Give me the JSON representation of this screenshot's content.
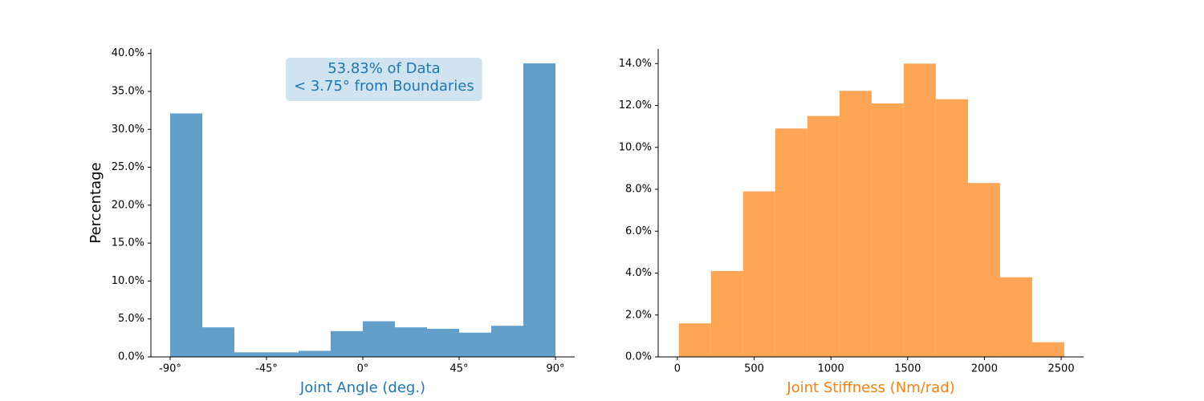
{
  "chart_data": [
    {
      "type": "histogram",
      "xlabel": "Joint Angle (deg.)",
      "xlabel_color": "#1f77b4",
      "ylabel": "Percentage",
      "bins": [
        -90,
        -75,
        -60,
        -45,
        -30,
        -15,
        0,
        15,
        30,
        45,
        60,
        75,
        90
      ],
      "values": [
        32.1,
        3.9,
        0.6,
        0.6,
        0.8,
        3.4,
        4.7,
        3.9,
        3.7,
        3.2,
        4.1,
        38.7
      ],
      "color": "#62a0cb",
      "xlim": [
        -99,
        99
      ],
      "ylim": [
        0,
        40.6
      ],
      "xticks": [
        {
          "value": -90,
          "label": "-90°"
        },
        {
          "value": -45,
          "label": "-45°"
        },
        {
          "value": 0,
          "label": "0°"
        },
        {
          "value": 45,
          "label": "45°"
        },
        {
          "value": 90,
          "label": "90°"
        }
      ],
      "yticks": [
        {
          "value": 0,
          "label": "0.0%"
        },
        {
          "value": 5,
          "label": "5.0%"
        },
        {
          "value": 10,
          "label": "10.0%"
        },
        {
          "value": 15,
          "label": "15.0%"
        },
        {
          "value": 20,
          "label": "20.0%"
        },
        {
          "value": 25,
          "label": "25.0%"
        },
        {
          "value": 30,
          "label": "30.0%"
        },
        {
          "value": 35,
          "label": "35.0%"
        },
        {
          "value": 40,
          "label": "40.0%"
        }
      ],
      "annotation": [
        "53.83% of Data",
        "< 3.75° from Boundaries"
      ],
      "annotation_color": "#1f77b4",
      "annotation_background": "#d0e3f0"
    },
    {
      "type": "histogram",
      "xlabel": "Joint Stiffness (Nm/rad)",
      "xlabel_color": "#ff7f0e",
      "bins": [
        10,
        219,
        428,
        637,
        847,
        1056,
        1265,
        1474,
        1683,
        1893,
        2102,
        2311,
        2520
      ],
      "values": [
        1.6,
        4.1,
        7.9,
        10.9,
        11.5,
        12.7,
        12.1,
        14.0,
        12.3,
        8.3,
        3.8,
        0.7
      ],
      "color": "#ffa556",
      "xlim": [
        -125,
        2646
      ],
      "ylim": [
        0,
        14.7
      ],
      "xticks": [
        0,
        500,
        1000,
        1500,
        2000,
        2500
      ],
      "yticks": [
        {
          "value": 0,
          "label": "0.0%"
        },
        {
          "value": 2,
          "label": "2.0%"
        },
        {
          "value": 4,
          "label": "4.0%"
        },
        {
          "value": 6,
          "label": "6.0%"
        },
        {
          "value": 8,
          "label": "8.0%"
        },
        {
          "value": 10,
          "label": "10.0%"
        },
        {
          "value": 12,
          "label": "12.0%"
        },
        {
          "value": 14,
          "label": "14.0%"
        }
      ]
    }
  ]
}
